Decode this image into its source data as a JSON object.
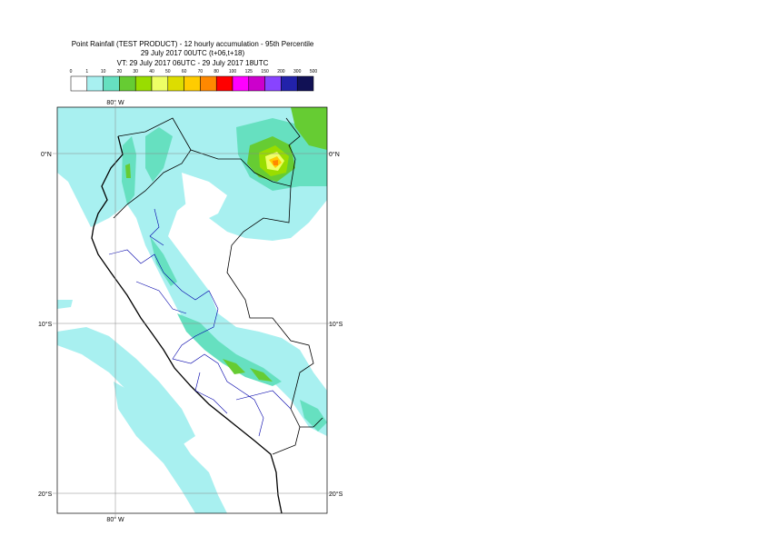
{
  "header": {
    "title": "Point Rainfall (TEST PRODUCT) - 12 hourly accumulation - 95th Percentile",
    "run": "29 July 2017 00UTC (t+06,t+18)",
    "valid": "VT: 29 July 2017 06UTC - 29 July 2017 18UTC"
  },
  "legend": {
    "levels": [
      0,
      1,
      10,
      20,
      30,
      40,
      50,
      60,
      70,
      80,
      100,
      125,
      150,
      200,
      300,
      500
    ],
    "colors": [
      "#ffffff",
      "#a8f0f0",
      "#66e0c0",
      "#66cc33",
      "#99dd00",
      "#eeff66",
      "#dddd00",
      "#ffcc00",
      "#ff8800",
      "#ff0000",
      "#ff00ff",
      "#cc00cc",
      "#8844ff",
      "#2222aa",
      "#111155"
    ]
  },
  "map": {
    "lon_label": "80° W",
    "lat_labels": [
      "0°N",
      "10°S",
      "20°S"
    ]
  }
}
